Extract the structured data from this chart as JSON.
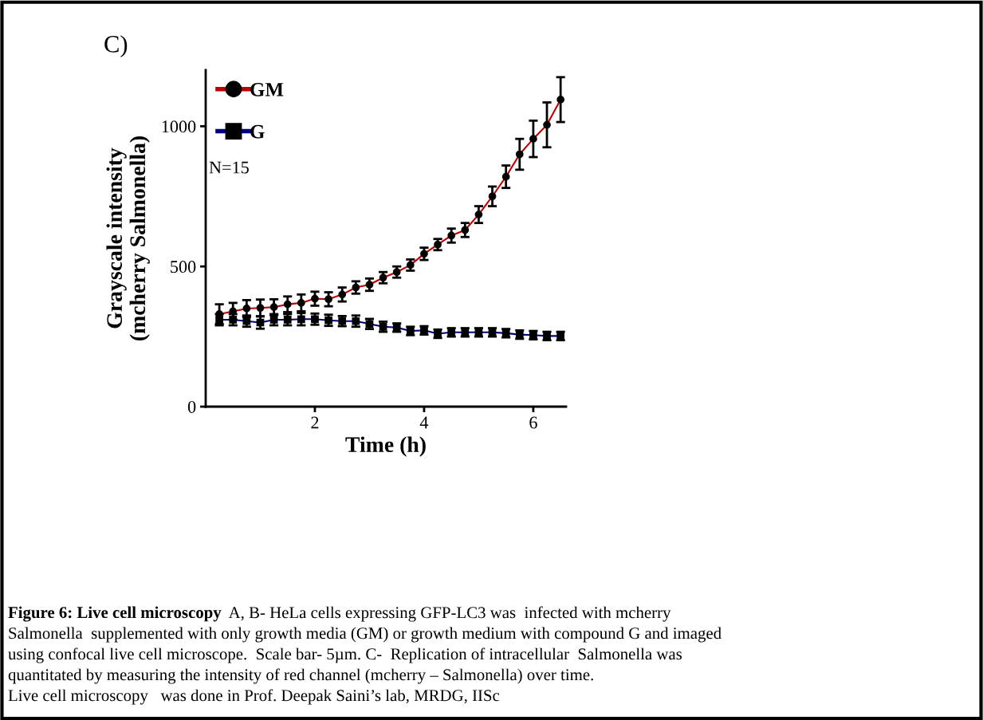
{
  "chart_data": {
    "type": "line",
    "xlabel": "Time (h)",
    "ylabel": "Grayscale intensity\n(mcherry Salmonella)",
    "x": [
      0.25,
      0.5,
      0.75,
      1.0,
      1.25,
      1.5,
      1.75,
      2.0,
      2.25,
      2.5,
      2.75,
      3.0,
      3.25,
      3.5,
      3.75,
      4.0,
      4.25,
      4.5,
      4.75,
      5.0,
      5.25,
      5.5,
      5.75,
      6.0,
      6.25,
      6.5
    ],
    "series": [
      {
        "name": "GM",
        "color": "#c00000",
        "marker": "circle",
        "values": [
          330,
          340,
          350,
          352,
          355,
          365,
          370,
          385,
          383,
          400,
          425,
          435,
          460,
          480,
          505,
          545,
          578,
          610,
          630,
          685,
          750,
          820,
          900,
          955,
          1005,
          1095
        ],
        "errors": [
          35,
          30,
          30,
          30,
          28,
          28,
          30,
          25,
          25,
          25,
          22,
          22,
          20,
          20,
          20,
          22,
          20,
          25,
          25,
          30,
          35,
          40,
          55,
          65,
          80,
          80
        ]
      },
      {
        "name": "G",
        "color": "#000080",
        "marker": "square",
        "values": [
          310,
          310,
          305,
          300,
          310,
          310,
          312,
          312,
          308,
          305,
          305,
          295,
          285,
          282,
          270,
          272,
          260,
          265,
          265,
          265,
          265,
          262,
          257,
          255,
          252,
          252
        ],
        "errors": [
          20,
          20,
          20,
          22,
          20,
          20,
          22,
          20,
          20,
          18,
          20,
          18,
          18,
          15,
          15,
          15,
          15,
          15,
          15,
          15,
          15,
          15,
          15,
          15,
          15,
          15
        ]
      }
    ],
    "xlim": [
      0,
      6.6
    ],
    "xticks": [
      2,
      4,
      6
    ],
    "ylim": [
      0,
      1200
    ],
    "yticks": [
      0,
      500,
      1000
    ],
    "grid": false,
    "legend": "top left",
    "line_style": "solid",
    "annotations": [
      "C)",
      "N=15",
      "Figure 6: Live cell microscopy",
      "A, B- HeLa cells expressing GFP-LC3 was  infected with mcherry",
      "Salmonella  supplemented with only growth media (GM) or growth medium with compound G and imaged",
      "using confocal live cell microscope.  Scale bar- 5µm. C-  Replication of intracellular  Salmonella was",
      "quantitated by measuring the intensity of red channel (mcherry – Salmonella) over time.",
      "Live cell microscopy   was done in Prof. Deepak Saini’s lab, MRDG, IISc"
    ]
  }
}
